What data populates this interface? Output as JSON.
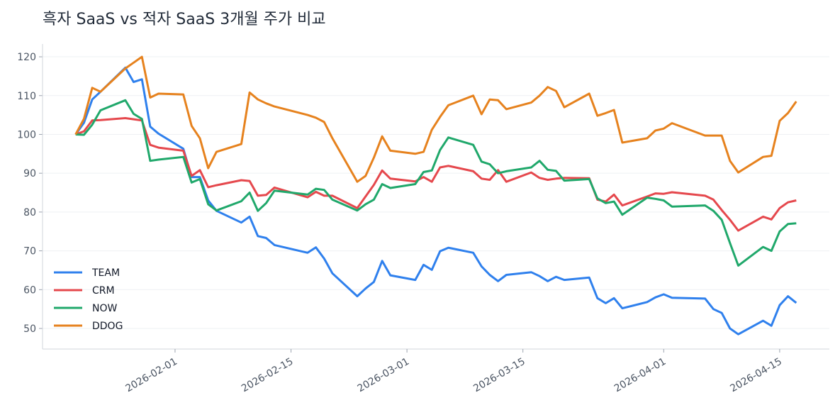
{
  "chart_data": {
    "type": "line",
    "title": "흑자 SaaS vs 적자 SaaS 3개월 주가 비교",
    "x": [
      "2026-01-20",
      "2026-01-21",
      "2026-01-22",
      "2026-01-23",
      "2026-01-26",
      "2026-01-27",
      "2026-01-28",
      "2026-01-29",
      "2026-01-30",
      "2026-02-02",
      "2026-02-03",
      "2026-02-04",
      "2026-02-05",
      "2026-02-06",
      "2026-02-09",
      "2026-02-10",
      "2026-02-11",
      "2026-02-12",
      "2026-02-13",
      "2026-02-17",
      "2026-02-18",
      "2026-02-19",
      "2026-02-20",
      "2026-02-23",
      "2026-02-24",
      "2026-02-25",
      "2026-02-26",
      "2026-02-27",
      "2026-03-02",
      "2026-03-03",
      "2026-03-04",
      "2026-03-05",
      "2026-03-06",
      "2026-03-09",
      "2026-03-10",
      "2026-03-11",
      "2026-03-12",
      "2026-03-13",
      "2026-03-16",
      "2026-03-17",
      "2026-03-18",
      "2026-03-19",
      "2026-03-20",
      "2026-03-23",
      "2026-03-24",
      "2026-03-25",
      "2026-03-26",
      "2026-03-27",
      "2026-03-30",
      "2026-03-31",
      "2026-04-01",
      "2026-04-02",
      "2026-04-06",
      "2026-04-07",
      "2026-04-08",
      "2026-04-09",
      "2026-04-10",
      "2026-04-13",
      "2026-04-14",
      "2026-04-15",
      "2026-04-16",
      "2026-04-17"
    ],
    "series": [
      {
        "name": "TEAM",
        "color": "#2f80ed",
        "values": [
          100,
          103,
          109,
          111,
          117.2,
          113.5,
          114.2,
          102,
          100.2,
          96.3,
          89,
          89,
          83,
          80.3,
          77.3,
          78.8,
          73.8,
          73.3,
          71.5,
          69.5,
          70.9,
          68,
          64.2,
          58.3,
          60.3,
          62,
          67.4,
          63.7,
          62.5,
          66.4,
          65.1,
          69.9,
          70.8,
          69.5,
          66,
          63.8,
          62.2,
          63.8,
          64.5,
          63.5,
          62.2,
          63.3,
          62.5,
          63.1,
          57.8,
          56.5,
          57.8,
          55.2,
          56.8,
          58,
          58.8,
          57.9,
          57.7,
          55,
          54,
          50,
          48.5,
          52,
          50.7,
          56,
          58.3,
          56.6
        ]
      },
      {
        "name": "CRM",
        "color": "#e5484d",
        "values": [
          100,
          100.8,
          103.6,
          103.7,
          104.2,
          103.9,
          103.6,
          97.3,
          96.6,
          95.8,
          89.3,
          90.8,
          86.4,
          86.9,
          88.2,
          88,
          84.2,
          84.4,
          86.3,
          83.8,
          85.2,
          84.2,
          84.2,
          81,
          84,
          87,
          90.7,
          88.6,
          87.9,
          89,
          87.8,
          91.5,
          91.9,
          90.5,
          88.6,
          88.3,
          90.8,
          87.8,
          90.2,
          88.8,
          88.3,
          88.6,
          88.8,
          88.7,
          83.2,
          82.7,
          84.5,
          81.7,
          84,
          84.8,
          84.7,
          85.1,
          84.2,
          83.2,
          80.5,
          78,
          75.2,
          78.8,
          78.1,
          81,
          82.5,
          83
        ]
      },
      {
        "name": "NOW",
        "color": "#20a86b",
        "values": [
          100,
          99.9,
          102.5,
          106.2,
          108.8,
          105.3,
          104,
          93.2,
          93.5,
          94.2,
          87.6,
          88.5,
          82,
          80.4,
          82.8,
          85,
          80.3,
          82.3,
          85.5,
          84.5,
          86,
          85.7,
          83.2,
          80.4,
          82,
          83.2,
          87.2,
          86.2,
          87.2,
          90.3,
          90.7,
          96,
          99.2,
          97.3,
          93,
          92.3,
          90,
          90.5,
          91.5,
          93.2,
          90.9,
          90.6,
          88.1,
          88.5,
          83.5,
          82.3,
          82.7,
          79.3,
          83.7,
          83.4,
          83,
          81.4,
          81.7,
          80.3,
          78,
          72,
          66.2,
          71,
          70,
          75,
          76.9,
          77.1
        ]
      },
      {
        "name": "DDOG",
        "color": "#e6821e",
        "values": [
          100,
          104,
          112,
          111,
          117,
          118.5,
          120,
          109.5,
          110.5,
          110.3,
          102.2,
          99,
          91.3,
          95.5,
          97.5,
          110.8,
          109,
          108,
          107.2,
          105,
          104.3,
          103.2,
          99,
          87.8,
          89.3,
          94,
          99.5,
          95.8,
          95,
          95.5,
          101.2,
          104.5,
          107.5,
          110,
          105.2,
          109,
          108.8,
          106.5,
          108.2,
          110,
          112.2,
          111.2,
          107,
          110.5,
          104.8,
          105.5,
          106.3,
          97.9,
          99,
          101,
          101.5,
          102.9,
          99.7,
          99.7,
          99.7,
          93.2,
          90.2,
          94.2,
          94.5,
          103.5,
          105.5,
          108.5
        ]
      }
    ],
    "xlim": [
      "2026-01-16",
      "2026-04-21"
    ],
    "xticks": [
      "2026-02-01",
      "2026-02-15",
      "2026-03-01",
      "2026-03-15",
      "2026-04-01",
      "2026-04-15"
    ],
    "ylim": [
      44.7,
      123.3
    ],
    "yticks": [
      50,
      60,
      70,
      80,
      90,
      100,
      110,
      120
    ],
    "grid": true,
    "legend": "lower left"
  }
}
